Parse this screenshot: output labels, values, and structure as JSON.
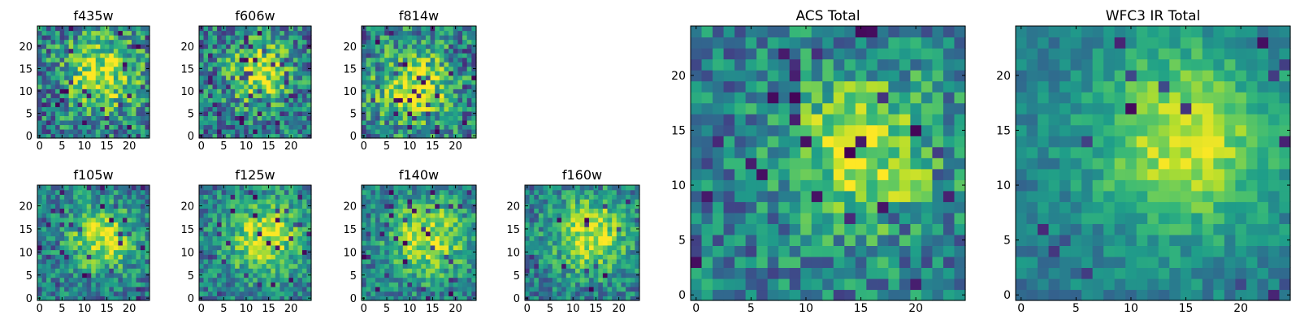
{
  "chart_data": [
    {
      "type": "heatmap",
      "title": "f435w",
      "grid_size": 25,
      "xticks": [
        0,
        5,
        10,
        15,
        20
      ],
      "yticks": [
        0,
        5,
        10,
        15,
        20
      ],
      "colormap": "viridis",
      "noise": 0.62,
      "dark_pixel_fraction": 0.07,
      "peak_center": [
        14,
        14
      ],
      "peak_width": 6,
      "seed": 11
    },
    {
      "type": "heatmap",
      "title": "f606w",
      "grid_size": 25,
      "xticks": [
        0,
        5,
        10,
        15,
        20
      ],
      "yticks": [
        0,
        5,
        10,
        15,
        20
      ],
      "colormap": "viridis",
      "noise": 0.6,
      "dark_pixel_fraction": 0.08,
      "peak_center": [
        13,
        14
      ],
      "peak_width": 5,
      "seed": 23
    },
    {
      "type": "heatmap",
      "title": "f814w",
      "grid_size": 25,
      "xticks": [
        0,
        5,
        10,
        15,
        20
      ],
      "yticks": [
        0,
        5,
        10,
        15,
        20
      ],
      "colormap": "viridis",
      "noise": 0.62,
      "dark_pixel_fraction": 0.07,
      "peak_center": [
        11,
        11
      ],
      "peak_width": 6,
      "seed": 37
    },
    {
      "type": "heatmap",
      "title": "f105w",
      "grid_size": 25,
      "xticks": [
        0,
        5,
        10,
        15,
        20
      ],
      "yticks": [
        0,
        5,
        10,
        15,
        20
      ],
      "colormap": "viridis",
      "noise": 0.48,
      "dark_pixel_fraction": 0.06,
      "peak_center": [
        14,
        13
      ],
      "peak_width": 5,
      "seed": 41
    },
    {
      "type": "heatmap",
      "title": "f125w",
      "grid_size": 25,
      "xticks": [
        0,
        5,
        10,
        15,
        20
      ],
      "yticks": [
        0,
        5,
        10,
        15,
        20
      ],
      "colormap": "viridis",
      "noise": 0.45,
      "dark_pixel_fraction": 0.04,
      "peak_center": [
        14,
        13
      ],
      "peak_width": 6,
      "seed": 53
    },
    {
      "type": "heatmap",
      "title": "f140w",
      "grid_size": 25,
      "xticks": [
        0,
        5,
        10,
        15,
        20
      ],
      "yticks": [
        0,
        5,
        10,
        15,
        20
      ],
      "colormap": "viridis",
      "noise": 0.45,
      "dark_pixel_fraction": 0.05,
      "peak_center": [
        14,
        13
      ],
      "peak_width": 6,
      "seed": 67
    },
    {
      "type": "heatmap",
      "title": "f160w",
      "grid_size": 25,
      "xticks": [
        0,
        5,
        10,
        15,
        20
      ],
      "yticks": [
        0,
        5,
        10,
        15,
        20
      ],
      "colormap": "viridis",
      "noise": 0.45,
      "dark_pixel_fraction": 0.05,
      "peak_center": [
        14,
        14
      ],
      "peak_width": 6,
      "seed": 79
    },
    {
      "type": "heatmap",
      "title": "ACS Total",
      "grid_size": 25,
      "xticks": [
        0,
        5,
        10,
        15,
        20
      ],
      "yticks": [
        0,
        5,
        10,
        15,
        20
      ],
      "colormap": "viridis",
      "noise": 0.5,
      "dark_pixel_fraction": 0.06,
      "peak_center": [
        15,
        13
      ],
      "peak_width": 5,
      "seed": 97
    },
    {
      "type": "heatmap",
      "title": "WFC3 IR Total",
      "grid_size": 25,
      "xticks": [
        0,
        5,
        10,
        15,
        20
      ],
      "yticks": [
        0,
        5,
        10,
        15,
        20
      ],
      "colormap": "viridis",
      "noise": 0.26,
      "dark_pixel_fraction": 0.035,
      "peak_center": [
        15,
        14
      ],
      "peak_width": 6,
      "seed": 131
    }
  ]
}
